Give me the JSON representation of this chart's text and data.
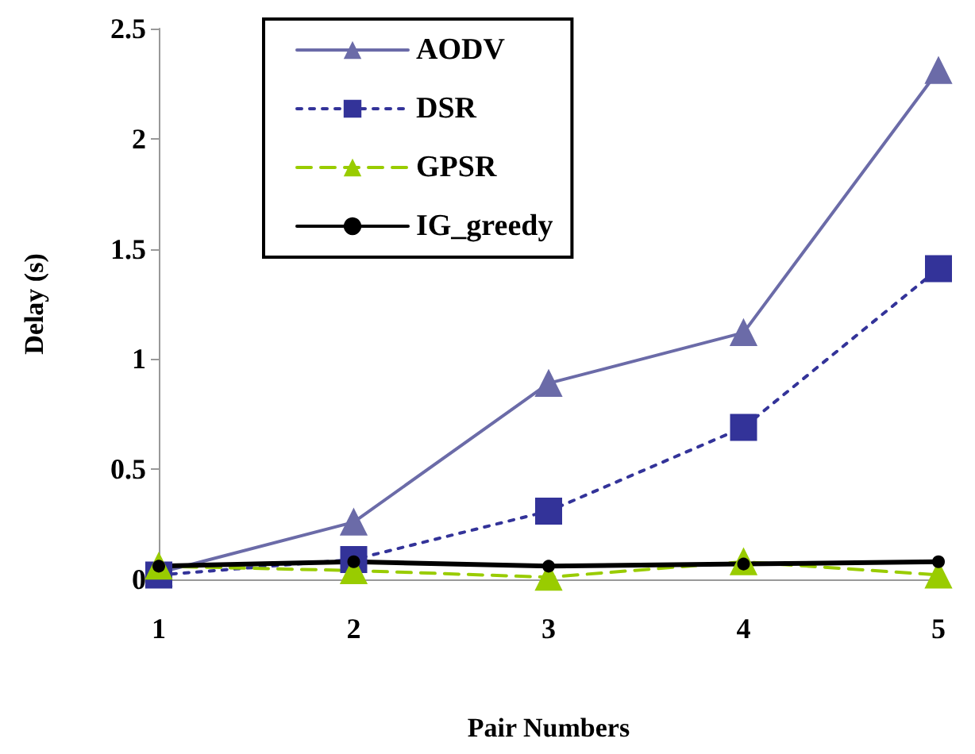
{
  "chart_data": {
    "type": "line",
    "xlabel": "Pair Numbers",
    "ylabel": "Delay (s)",
    "categories": [
      "1",
      "2",
      "3",
      "4",
      "5"
    ],
    "ylim": [
      0,
      2.5
    ],
    "yticks": [
      0,
      0.5,
      1,
      1.5,
      2,
      2.5
    ],
    "grid": false,
    "legend": "top left",
    "series": [
      {
        "name": "AODV",
        "color": "#6b6ba8",
        "marker": "triangle",
        "line_style": "solid",
        "values": [
          0.03,
          0.26,
          0.89,
          1.12,
          2.31
        ]
      },
      {
        "name": "DSR",
        "color": "#333399",
        "marker": "square",
        "line_style": "dotted",
        "values": [
          0.02,
          0.09,
          0.31,
          0.69,
          1.41
        ]
      },
      {
        "name": "GPSR",
        "color": "#99cc00",
        "marker": "triangle",
        "line_style": "dashed",
        "values": [
          0.06,
          0.04,
          0.01,
          0.08,
          0.02
        ]
      },
      {
        "name": "IG_greedy",
        "color": "#000000",
        "marker": "circle",
        "line_style": "solid",
        "values": [
          0.06,
          0.08,
          0.06,
          0.07,
          0.08
        ]
      }
    ]
  }
}
